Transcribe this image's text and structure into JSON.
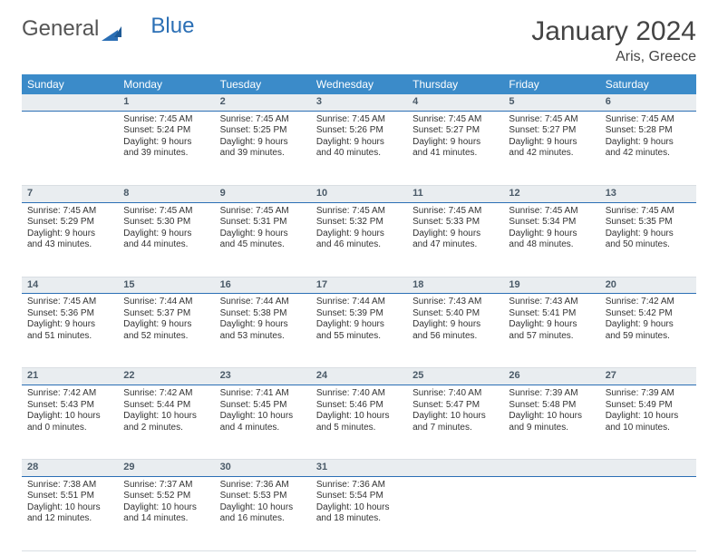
{
  "brand": {
    "part1": "General",
    "part2": "Blue"
  },
  "title": "January 2024",
  "location": "Aris, Greece",
  "colors": {
    "header_bg": "#3b8bc9",
    "daynum_bg": "#e9edf0",
    "daynum_border": "#2b6fb5",
    "text": "#333333"
  },
  "weekdays": [
    "Sunday",
    "Monday",
    "Tuesday",
    "Wednesday",
    "Thursday",
    "Friday",
    "Saturday"
  ],
  "weeks": [
    {
      "nums": [
        "",
        "1",
        "2",
        "3",
        "4",
        "5",
        "6"
      ],
      "cells": [
        {
          "l1": "",
          "l2": "",
          "l3": "",
          "l4": ""
        },
        {
          "l1": "Sunrise: 7:45 AM",
          "l2": "Sunset: 5:24 PM",
          "l3": "Daylight: 9 hours",
          "l4": "and 39 minutes."
        },
        {
          "l1": "Sunrise: 7:45 AM",
          "l2": "Sunset: 5:25 PM",
          "l3": "Daylight: 9 hours",
          "l4": "and 39 minutes."
        },
        {
          "l1": "Sunrise: 7:45 AM",
          "l2": "Sunset: 5:26 PM",
          "l3": "Daylight: 9 hours",
          "l4": "and 40 minutes."
        },
        {
          "l1": "Sunrise: 7:45 AM",
          "l2": "Sunset: 5:27 PM",
          "l3": "Daylight: 9 hours",
          "l4": "and 41 minutes."
        },
        {
          "l1": "Sunrise: 7:45 AM",
          "l2": "Sunset: 5:27 PM",
          "l3": "Daylight: 9 hours",
          "l4": "and 42 minutes."
        },
        {
          "l1": "Sunrise: 7:45 AM",
          "l2": "Sunset: 5:28 PM",
          "l3": "Daylight: 9 hours",
          "l4": "and 42 minutes."
        }
      ]
    },
    {
      "nums": [
        "7",
        "8",
        "9",
        "10",
        "11",
        "12",
        "13"
      ],
      "cells": [
        {
          "l1": "Sunrise: 7:45 AM",
          "l2": "Sunset: 5:29 PM",
          "l3": "Daylight: 9 hours",
          "l4": "and 43 minutes."
        },
        {
          "l1": "Sunrise: 7:45 AM",
          "l2": "Sunset: 5:30 PM",
          "l3": "Daylight: 9 hours",
          "l4": "and 44 minutes."
        },
        {
          "l1": "Sunrise: 7:45 AM",
          "l2": "Sunset: 5:31 PM",
          "l3": "Daylight: 9 hours",
          "l4": "and 45 minutes."
        },
        {
          "l1": "Sunrise: 7:45 AM",
          "l2": "Sunset: 5:32 PM",
          "l3": "Daylight: 9 hours",
          "l4": "and 46 minutes."
        },
        {
          "l1": "Sunrise: 7:45 AM",
          "l2": "Sunset: 5:33 PM",
          "l3": "Daylight: 9 hours",
          "l4": "and 47 minutes."
        },
        {
          "l1": "Sunrise: 7:45 AM",
          "l2": "Sunset: 5:34 PM",
          "l3": "Daylight: 9 hours",
          "l4": "and 48 minutes."
        },
        {
          "l1": "Sunrise: 7:45 AM",
          "l2": "Sunset: 5:35 PM",
          "l3": "Daylight: 9 hours",
          "l4": "and 50 minutes."
        }
      ]
    },
    {
      "nums": [
        "14",
        "15",
        "16",
        "17",
        "18",
        "19",
        "20"
      ],
      "cells": [
        {
          "l1": "Sunrise: 7:45 AM",
          "l2": "Sunset: 5:36 PM",
          "l3": "Daylight: 9 hours",
          "l4": "and 51 minutes."
        },
        {
          "l1": "Sunrise: 7:44 AM",
          "l2": "Sunset: 5:37 PM",
          "l3": "Daylight: 9 hours",
          "l4": "and 52 minutes."
        },
        {
          "l1": "Sunrise: 7:44 AM",
          "l2": "Sunset: 5:38 PM",
          "l3": "Daylight: 9 hours",
          "l4": "and 53 minutes."
        },
        {
          "l1": "Sunrise: 7:44 AM",
          "l2": "Sunset: 5:39 PM",
          "l3": "Daylight: 9 hours",
          "l4": "and 55 minutes."
        },
        {
          "l1": "Sunrise: 7:43 AM",
          "l2": "Sunset: 5:40 PM",
          "l3": "Daylight: 9 hours",
          "l4": "and 56 minutes."
        },
        {
          "l1": "Sunrise: 7:43 AM",
          "l2": "Sunset: 5:41 PM",
          "l3": "Daylight: 9 hours",
          "l4": "and 57 minutes."
        },
        {
          "l1": "Sunrise: 7:42 AM",
          "l2": "Sunset: 5:42 PM",
          "l3": "Daylight: 9 hours",
          "l4": "and 59 minutes."
        }
      ]
    },
    {
      "nums": [
        "21",
        "22",
        "23",
        "24",
        "25",
        "26",
        "27"
      ],
      "cells": [
        {
          "l1": "Sunrise: 7:42 AM",
          "l2": "Sunset: 5:43 PM",
          "l3": "Daylight: 10 hours",
          "l4": "and 0 minutes."
        },
        {
          "l1": "Sunrise: 7:42 AM",
          "l2": "Sunset: 5:44 PM",
          "l3": "Daylight: 10 hours",
          "l4": "and 2 minutes."
        },
        {
          "l1": "Sunrise: 7:41 AM",
          "l2": "Sunset: 5:45 PM",
          "l3": "Daylight: 10 hours",
          "l4": "and 4 minutes."
        },
        {
          "l1": "Sunrise: 7:40 AM",
          "l2": "Sunset: 5:46 PM",
          "l3": "Daylight: 10 hours",
          "l4": "and 5 minutes."
        },
        {
          "l1": "Sunrise: 7:40 AM",
          "l2": "Sunset: 5:47 PM",
          "l3": "Daylight: 10 hours",
          "l4": "and 7 minutes."
        },
        {
          "l1": "Sunrise: 7:39 AM",
          "l2": "Sunset: 5:48 PM",
          "l3": "Daylight: 10 hours",
          "l4": "and 9 minutes."
        },
        {
          "l1": "Sunrise: 7:39 AM",
          "l2": "Sunset: 5:49 PM",
          "l3": "Daylight: 10 hours",
          "l4": "and 10 minutes."
        }
      ]
    },
    {
      "nums": [
        "28",
        "29",
        "30",
        "31",
        "",
        "",
        ""
      ],
      "cells": [
        {
          "l1": "Sunrise: 7:38 AM",
          "l2": "Sunset: 5:51 PM",
          "l3": "Daylight: 10 hours",
          "l4": "and 12 minutes."
        },
        {
          "l1": "Sunrise: 7:37 AM",
          "l2": "Sunset: 5:52 PM",
          "l3": "Daylight: 10 hours",
          "l4": "and 14 minutes."
        },
        {
          "l1": "Sunrise: 7:36 AM",
          "l2": "Sunset: 5:53 PM",
          "l3": "Daylight: 10 hours",
          "l4": "and 16 minutes."
        },
        {
          "l1": "Sunrise: 7:36 AM",
          "l2": "Sunset: 5:54 PM",
          "l3": "Daylight: 10 hours",
          "l4": "and 18 minutes."
        },
        {
          "l1": "",
          "l2": "",
          "l3": "",
          "l4": ""
        },
        {
          "l1": "",
          "l2": "",
          "l3": "",
          "l4": ""
        },
        {
          "l1": "",
          "l2": "",
          "l3": "",
          "l4": ""
        }
      ]
    }
  ]
}
